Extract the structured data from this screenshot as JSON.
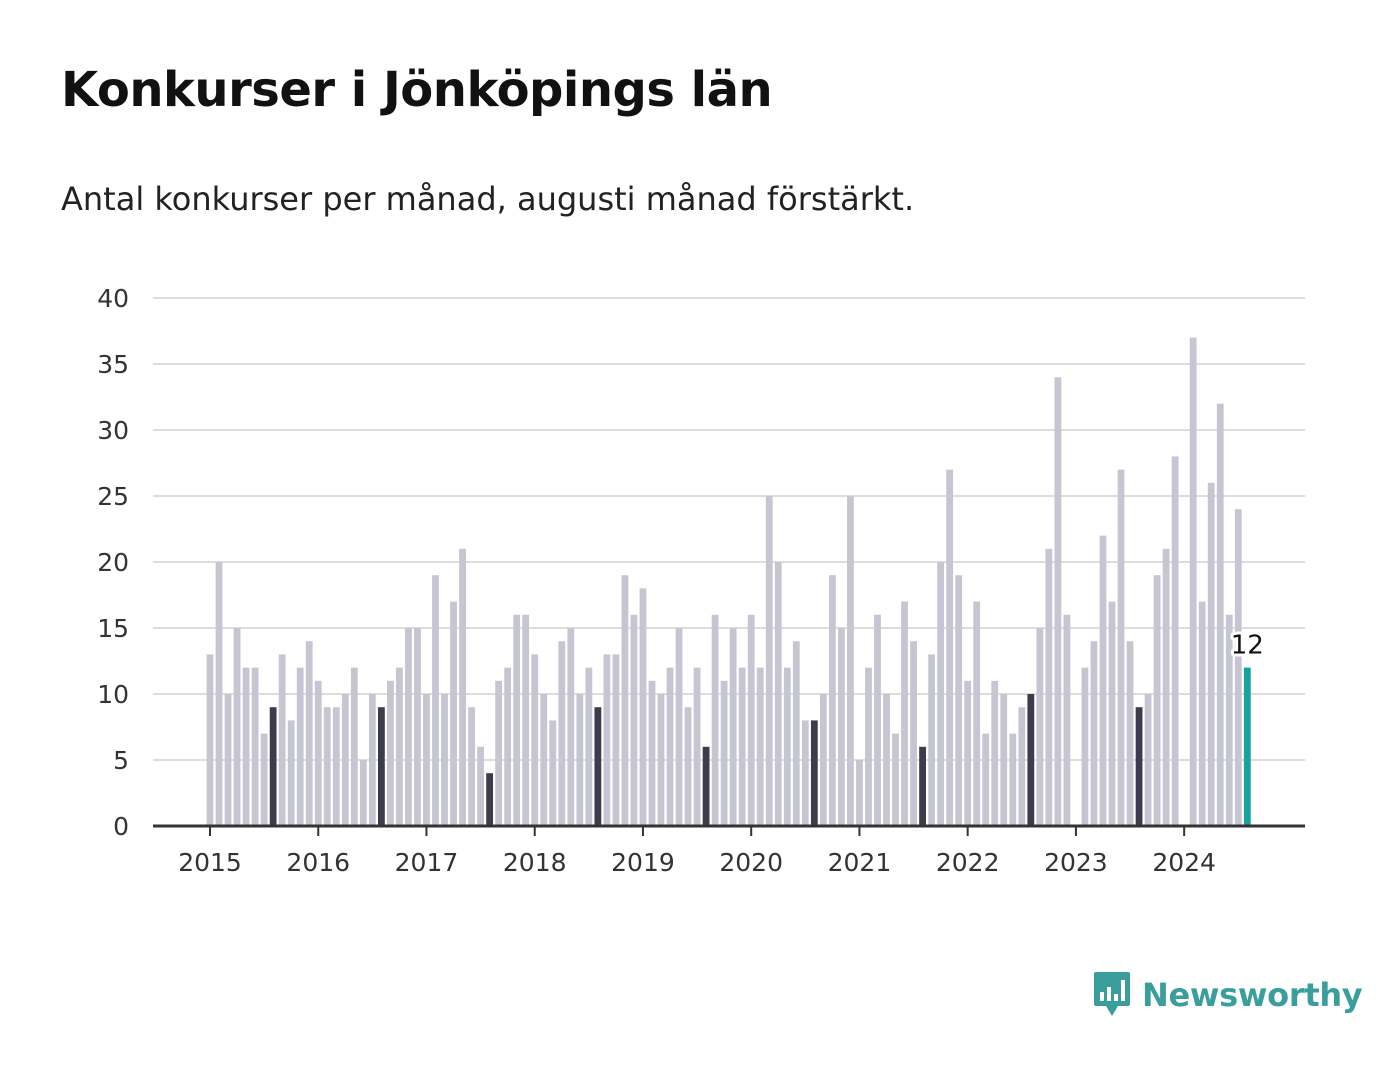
{
  "header": {
    "title": "Konkurser i Jönköpings län",
    "subtitle": "Antal konkurser per månad, augusti månad förstärkt."
  },
  "brand": {
    "name": "Newsworthy",
    "icon": "newsworthy-logo-icon",
    "color": "#3a9e9c"
  },
  "colors": {
    "bar": "#c6c6d3",
    "highlight": "#3c3c4c",
    "latest": "#14a49a",
    "grid": "#dddddd",
    "axis": "#333333"
  },
  "chart_data": {
    "type": "bar",
    "title": "Konkurser i Jönköpings län",
    "subtitle": "Antal konkurser per månad, augusti månad förstärkt.",
    "start": "2015-01",
    "highlight_month": "augusti",
    "x_tick_labels": [
      "2015",
      "2016",
      "2017",
      "2018",
      "2019",
      "2020",
      "2021",
      "2022",
      "2023",
      "2024"
    ],
    "y_ticks": [
      0,
      5,
      10,
      15,
      20,
      25,
      30,
      35,
      40
    ],
    "ylim": [
      0,
      40
    ],
    "grid": true,
    "last_value_label": "12",
    "series": [
      {
        "values": [
          13,
          20,
          10,
          15,
          12,
          12,
          7,
          9,
          13,
          8,
          12,
          14,
          11,
          9,
          9,
          10,
          12,
          5,
          10,
          9,
          11,
          12,
          15,
          15,
          10,
          19,
          10,
          17,
          21,
          9,
          6,
          4,
          11,
          12,
          16,
          16,
          13,
          10,
          8,
          14,
          15,
          10,
          12,
          9,
          13,
          13,
          19,
          16,
          18,
          11,
          10,
          12,
          15,
          9,
          12,
          6,
          16,
          11,
          15,
          12,
          16,
          12,
          25,
          20,
          12,
          14,
          8,
          8,
          10,
          19,
          15,
          25,
          5,
          12,
          16,
          10,
          7,
          17,
          14,
          6,
          13,
          20,
          27,
          19,
          11,
          17,
          7,
          11,
          10,
          7,
          9,
          10,
          15,
          21,
          34,
          16,
          0,
          12,
          14,
          22,
          17,
          27,
          14,
          9,
          10,
          19,
          21,
          28,
          0,
          37,
          17,
          26,
          32,
          16,
          24,
          12
        ]
      }
    ]
  }
}
